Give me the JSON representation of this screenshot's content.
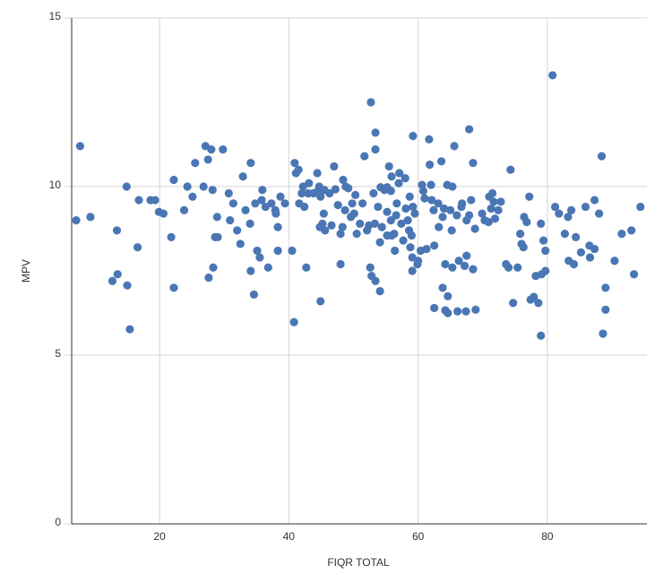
{
  "chart_data": {
    "type": "scatter",
    "xlabel": "FIQR TOTAL",
    "ylabel": "MPV",
    "color": "#4a76b4",
    "grid": true,
    "xlim": [
      6.4,
      95.4
    ],
    "ylim": [
      0,
      15
    ],
    "xticks": [
      20,
      40,
      60,
      80
    ],
    "yticks": [
      0,
      5,
      10,
      15
    ],
    "x": [
      7.7,
      7.1,
      9.3,
      13.4,
      13.5,
      12.7,
      15.0,
      14.9,
      15.4,
      16.8,
      16.6,
      18.6,
      19.3,
      19.9,
      20.6,
      21.8,
      22.2,
      22.2,
      23.8,
      24.3,
      25.1,
      25.5,
      26.8,
      27.1,
      27.5,
      28.0,
      27.6,
      28.3,
      28.2,
      28.9,
      28.6,
      29.0,
      29.8,
      30.7,
      30.9,
      31.4,
      32.0,
      32.5,
      32.9,
      33.3,
      34.0,
      34.1,
      34.1,
      34.6,
      34.8,
      35.1,
      35.5,
      35.9,
      35.8,
      36.4,
      36.8,
      37.3,
      37.9,
      38.0,
      38.3,
      38.3,
      38.7,
      39.4,
      40.5,
      40.8,
      40.9,
      41.1,
      41.5,
      41.6,
      42.0,
      42.2,
      42.4,
      42.7,
      43.0,
      43.1,
      43.8,
      44.4,
      44.4,
      44.7,
      44.9,
      44.8,
      44.9,
      45.2,
      45.4,
      45.5,
      45.6,
      46.3,
      46.6,
      47.0,
      47.2,
      47.6,
      48.0,
      48.0,
      48.3,
      48.4,
      48.7,
      48.8,
      49.2,
      49.6,
      49.8,
      50.1,
      50.3,
      50.5,
      51.0,
      51.4,
      51.7,
      52.1,
      52.4,
      52.6,
      52.7,
      52.8,
      53.1,
      53.3,
      53.4,
      53.4,
      53.4,
      53.8,
      54.1,
      54.1,
      54.2,
      54.4,
      54.8,
      55.2,
      55.2,
      55.2,
      55.5,
      55.8,
      55.8,
      55.9,
      55.9,
      56.3,
      56.4,
      56.6,
      56.7,
      57.0,
      57.1,
      57.4,
      57.7,
      58.0,
      58.1,
      58.4,
      58.6,
      58.7,
      58.8,
      59.0,
      59.1,
      59.1,
      59.2,
      59.2,
      59.5,
      59.9,
      60.0,
      60.4,
      60.6,
      60.8,
      61.0,
      61.3,
      61.7,
      61.8,
      62.0,
      62.1,
      62.4,
      62.5,
      62.5,
      63.1,
      63.2,
      63.6,
      63.8,
      63.8,
      64.0,
      64.2,
      64.2,
      64.5,
      64.6,
      64.6,
      65.0,
      65.2,
      65.3,
      65.3,
      65.6,
      66.0,
      66.1,
      66.3,
      66.7,
      66.8,
      67.2,
      67.4,
      67.5,
      67.5,
      67.9,
      67.9,
      68.2,
      68.5,
      68.5,
      68.8,
      68.9,
      69.9,
      70.3,
      70.9,
      71.0,
      71.3,
      71.5,
      71.7,
      71.9,
      72.4,
      72.8,
      73.6,
      74.0,
      74.3,
      74.7,
      75.4,
      75.8,
      76.0,
      76.3,
      76.4,
      76.8,
      77.2,
      77.4,
      77.9,
      78.2,
      78.6,
      79.0,
      79.1,
      79.0,
      79.4,
      79.7,
      79.7,
      80.8,
      81.2,
      81.8,
      82.7,
      83.2,
      83.3,
      83.7,
      84.1,
      84.4,
      85.2,
      85.9,
      86.5,
      86.6,
      87.3,
      87.3,
      88.0,
      88.4,
      88.6,
      89.0,
      89.0,
      90.4,
      91.5,
      93.0,
      93.4,
      94.4
    ],
    "y": [
      11.2,
      9.0,
      9.1,
      8.7,
      7.4,
      7.2,
      7.07,
      10.0,
      5.77,
      9.6,
      8.2,
      9.6,
      9.6,
      9.25,
      9.2,
      8.5,
      7.0,
      10.2,
      9.3,
      10.0,
      9.7,
      10.7,
      10.0,
      11.2,
      10.8,
      11.1,
      7.3,
      7.6,
      9.9,
      9.1,
      8.5,
      8.5,
      11.1,
      9.8,
      9.0,
      9.5,
      8.7,
      8.3,
      10.3,
      9.3,
      8.9,
      10.7,
      7.5,
      6.8,
      9.5,
      8.1,
      7.9,
      9.9,
      9.6,
      9.4,
      7.6,
      9.5,
      9.3,
      9.2,
      8.1,
      8.8,
      9.7,
      9.5,
      8.1,
      5.98,
      10.7,
      10.4,
      10.5,
      9.5,
      9.8,
      10.0,
      9.4,
      7.6,
      9.8,
      10.1,
      9.8,
      10.4,
      9.85,
      10.0,
      6.6,
      8.8,
      9.7,
      8.9,
      9.2,
      9.9,
      8.7,
      9.8,
      8.85,
      10.6,
      9.92,
      9.45,
      7.7,
      8.6,
      8.8,
      10.2,
      9.3,
      10.0,
      9.95,
      9.1,
      9.5,
      9.2,
      9.75,
      8.6,
      8.9,
      9.5,
      10.9,
      8.7,
      8.85,
      7.6,
      12.5,
      7.35,
      9.8,
      8.9,
      7.2,
      11.6,
      11.1,
      9.4,
      6.9,
      8.35,
      9.98,
      8.8,
      9.9,
      9.25,
      8.55,
      9.98,
      10.6,
      9.87,
      9.0,
      10.3,
      8.55,
      8.6,
      8.1,
      9.15,
      9.5,
      10.1,
      10.4,
      8.9,
      8.4,
      10.25,
      9.35,
      9.0,
      8.7,
      9.7,
      8.2,
      8.55,
      7.9,
      7.5,
      11.5,
      9.4,
      9.2,
      7.7,
      7.8,
      8.1,
      10.05,
      9.87,
      9.65,
      8.15,
      11.4,
      10.65,
      10.05,
      9.6,
      9.3,
      8.25,
      6.4,
      9.5,
      8.8,
      10.75,
      9.1,
      7.0,
      9.35,
      6.33,
      7.7,
      10.05,
      6.25,
      6.75,
      9.3,
      8.7,
      10.0,
      7.6,
      11.2,
      9.15,
      6.3,
      7.8,
      9.4,
      9.5,
      7.65,
      6.3,
      7.95,
      9.0,
      11.7,
      9.15,
      9.6,
      10.7,
      7.55,
      8.75,
      6.35,
      9.2,
      9.0,
      8.95,
      9.7,
      9.35,
      9.8,
      9.55,
      9.05,
      9.3,
      9.55,
      7.7,
      7.6,
      10.5,
      6.55,
      7.6,
      8.6,
      8.3,
      8.2,
      9.1,
      8.95,
      9.7,
      6.65,
      6.73,
      7.35,
      6.55,
      8.9,
      7.4,
      5.58,
      8.4,
      7.5,
      8.1,
      13.3,
      9.4,
      9.2,
      8.6,
      9.1,
      7.8,
      9.3,
      7.7,
      8.5,
      8.05,
      9.4,
      8.25,
      7.9,
      8.15,
      9.6,
      9.2,
      10.9,
      5.64,
      7.0,
      6.35,
      7.8,
      8.6,
      8.7,
      7.4,
      9.4
    ]
  }
}
